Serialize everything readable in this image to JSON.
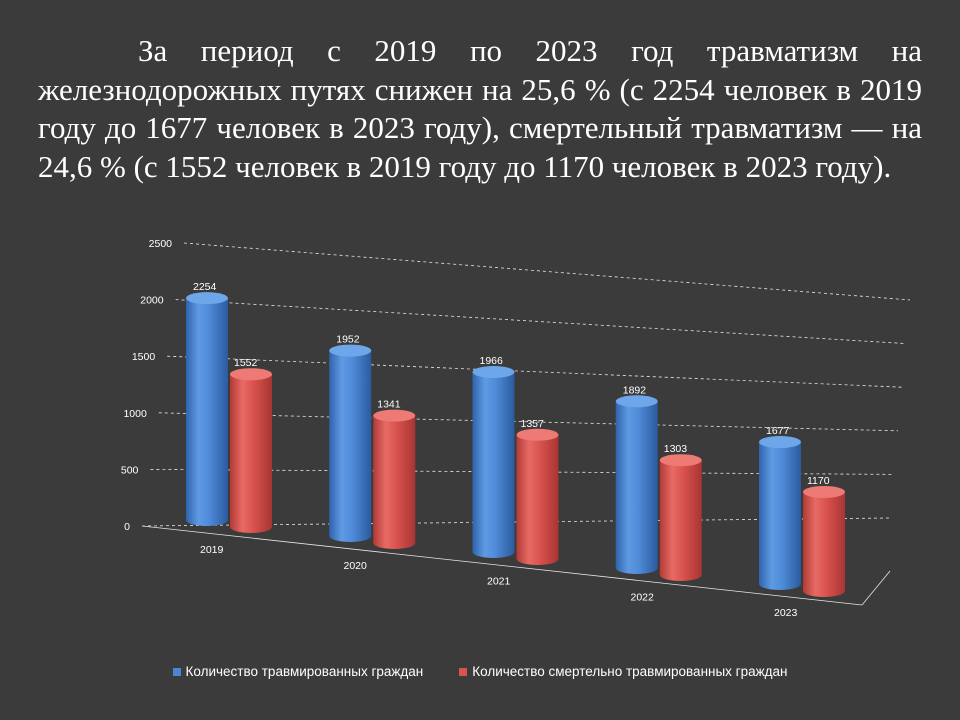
{
  "slide": {
    "text": "За период с 2019 по 2023 год травматизм на железнодорожных путях снижен на 25,6 % (с 2254 человек в 2019 году до 1677 человек в 2023 году), смертельный травматизм — на 24,6 % (с 1552 человек в 2019 году до 1170 человек в 2023 году)."
  },
  "colors": {
    "background": "#3b3b3b",
    "series_injured": "#4a86d4",
    "series_fatal": "#d9534f"
  },
  "chart_data": {
    "type": "bar",
    "style": "3d-cylinder",
    "categories": [
      "2019",
      "2020",
      "2021",
      "2022",
      "2023"
    ],
    "series": [
      {
        "name": "Количество травмированных граждан",
        "values": [
          2254,
          1952,
          1966,
          1892,
          1677
        ]
      },
      {
        "name": "Количество смертельно травмированных граждан",
        "values": [
          1552,
          1341,
          1357,
          1303,
          1170
        ]
      }
    ],
    "y_ticks": [
      "0",
      "500",
      "1000",
      "1500",
      "2000",
      "2500"
    ],
    "ylim": [
      0,
      2500
    ],
    "grid": true,
    "legend_position": "bottom",
    "data_labels": true
  }
}
